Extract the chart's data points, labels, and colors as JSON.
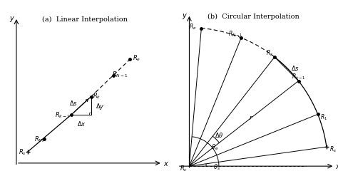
{
  "fig_width": 4.74,
  "fig_height": 2.55,
  "dpi": 100,
  "bg_color": "#ffffff",
  "title_a": "(a)  Linear Interpolation",
  "title_b": "(b)  Circular Interpolation"
}
